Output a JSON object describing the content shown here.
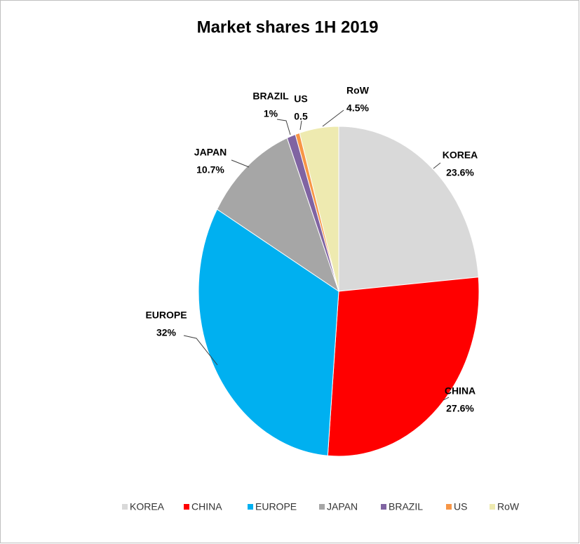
{
  "chart_data": {
    "type": "pie",
    "title": "Market shares 1H 2019",
    "categories": [
      "KOREA",
      "CHINA",
      "EUROPE",
      "JAPAN",
      "BRAZIL",
      "US",
      "RoW"
    ],
    "values": [
      23.6,
      27.6,
      32,
      10.7,
      1,
      0.5,
      4.5
    ],
    "value_labels": [
      "23.6%",
      "27.6%",
      "32%",
      "10.7%",
      "1%",
      "0.5",
      "4.5%"
    ],
    "colors": [
      "#d9d9d9",
      "#ff0000",
      "#00b0f0",
      "#a6a6a6",
      "#8064a2",
      "#f79646",
      "#eeeab0"
    ],
    "legend": "bottom"
  }
}
